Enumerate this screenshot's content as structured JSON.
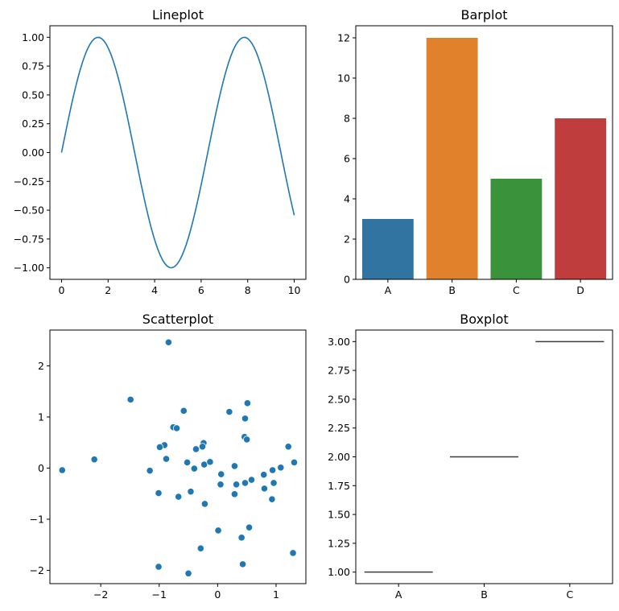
{
  "chart_data": [
    {
      "type": "line",
      "title": "Lineplot",
      "function": "sin(x)",
      "x_range": [
        0,
        10
      ],
      "num_points": 100,
      "color": "#1f77b4",
      "xlim": [
        -0.5,
        10.5
      ],
      "ylim": [
        -1.1,
        1.1
      ],
      "xticks": [
        0,
        2,
        4,
        6,
        8,
        10
      ],
      "xtick_labels": [
        "0",
        "2",
        "4",
        "6",
        "8",
        "10"
      ],
      "yticks": [
        -1,
        -0.75,
        -0.5,
        -0.25,
        0,
        0.25,
        0.5,
        0.75,
        1
      ],
      "ytick_labels": [
        "−1.00",
        "−0.75",
        "−0.50",
        "−0.25",
        "0.00",
        "0.25",
        "0.50",
        "0.75",
        "1.00"
      ]
    },
    {
      "type": "bar",
      "title": "Barplot",
      "categories": [
        "A",
        "B",
        "C",
        "D"
      ],
      "values": [
        3,
        12,
        5,
        8
      ],
      "colors": [
        "#3274a1",
        "#e1812c",
        "#3a923a",
        "#c03d3e"
      ],
      "xlim": [
        -0.5,
        3.5
      ],
      "ylim": [
        0,
        12.6
      ],
      "yticks": [
        0,
        2,
        4,
        6,
        8,
        10,
        12
      ],
      "ytick_labels": [
        "0",
        "2",
        "4",
        "6",
        "8",
        "10",
        "12"
      ]
    },
    {
      "type": "scatter",
      "title": "Scatterplot",
      "color": "#1f77b4",
      "xlim": [
        -2.87,
        1.51
      ],
      "ylim": [
        -2.26,
        2.7
      ],
      "xticks": [
        -2,
        -1,
        0,
        1
      ],
      "xtick_labels": [
        "−2",
        "−1",
        "0",
        "1"
      ],
      "yticks": [
        -2,
        -1,
        0,
        1,
        2
      ],
      "ytick_labels": [
        "−2",
        "−1",
        "0",
        "1",
        "2"
      ],
      "points": [
        [
          -0.84,
          2.46
        ],
        [
          -1.49,
          1.34
        ],
        [
          -0.58,
          1.12
        ],
        [
          0.51,
          1.27
        ],
        [
          0.2,
          1.1
        ],
        [
          0.47,
          0.97
        ],
        [
          -0.76,
          0.8
        ],
        [
          -0.7,
          0.78
        ],
        [
          0.46,
          0.61
        ],
        [
          0.5,
          0.56
        ],
        [
          1.21,
          0.42
        ],
        [
          -0.24,
          0.49
        ],
        [
          -0.26,
          0.42
        ],
        [
          -0.91,
          0.45
        ],
        [
          -0.99,
          0.41
        ],
        [
          -0.37,
          0.37
        ],
        [
          -0.88,
          0.18
        ],
        [
          -2.11,
          0.17
        ],
        [
          -2.66,
          -0.04
        ],
        [
          -1.16,
          -0.05
        ],
        [
          -0.52,
          0.11
        ],
        [
          -0.4,
          -0.01
        ],
        [
          -0.23,
          0.07
        ],
        [
          -0.13,
          0.12
        ],
        [
          0.29,
          0.04
        ],
        [
          1.31,
          0.11
        ],
        [
          1.08,
          0.01
        ],
        [
          0.94,
          -0.04
        ],
        [
          0.79,
          -0.13
        ],
        [
          0.06,
          -0.12
        ],
        [
          0.05,
          -0.32
        ],
        [
          0.32,
          -0.32
        ],
        [
          0.47,
          -0.29
        ],
        [
          0.58,
          -0.23
        ],
        [
          0.96,
          -0.29
        ],
        [
          0.8,
          -0.4
        ],
        [
          0.93,
          -0.61
        ],
        [
          0.29,
          -0.51
        ],
        [
          -1.01,
          -0.49
        ],
        [
          -0.67,
          -0.56
        ],
        [
          -0.46,
          -0.46
        ],
        [
          -0.22,
          -0.7
        ],
        [
          0.01,
          -1.22
        ],
        [
          0.54,
          -1.16
        ],
        [
          0.41,
          -1.36
        ],
        [
          -0.29,
          -1.57
        ],
        [
          1.29,
          -1.66
        ],
        [
          0.43,
          -1.88
        ],
        [
          -1.01,
          -1.93
        ],
        [
          -0.5,
          -2.06
        ]
      ]
    },
    {
      "type": "box",
      "title": "Boxplot",
      "categories": [
        "A",
        "B",
        "C"
      ],
      "values": [
        1,
        2,
        3
      ],
      "line_color": "#3d3d3d",
      "xlim": [
        -0.5,
        2.5
      ],
      "ylim": [
        0.9,
        3.1
      ],
      "yticks": [
        1,
        1.25,
        1.5,
        1.75,
        2,
        2.25,
        2.5,
        2.75,
        3
      ],
      "ytick_labels": [
        "1.00",
        "1.25",
        "1.50",
        "1.75",
        "2.00",
        "2.25",
        "2.50",
        "2.75",
        "3.00"
      ]
    }
  ]
}
